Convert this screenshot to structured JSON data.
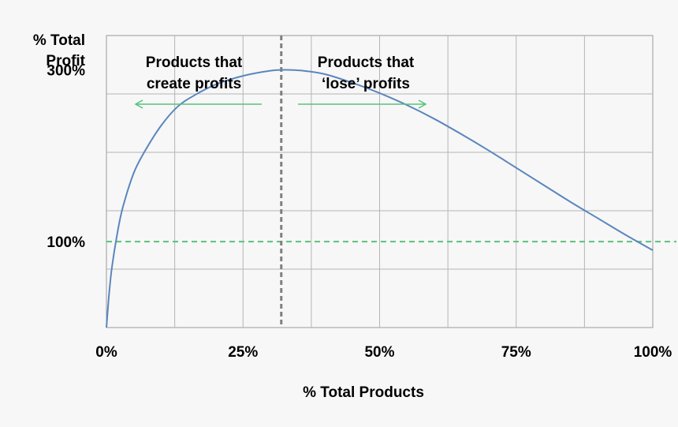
{
  "chart_data": {
    "type": "line",
    "ylabel_line1": "% Total",
    "ylabel_line2": "Profit",
    "xlabel": "% Total Products",
    "x_ticks": [
      "0%",
      "25%",
      "50%",
      "75%",
      "100%"
    ],
    "x_tick_values": [
      0,
      25,
      50,
      75,
      100
    ],
    "y_ticks": [
      "100%",
      "300%"
    ],
    "y_tick_values": [
      100,
      300
    ],
    "xlim": [
      0,
      100
    ],
    "ylim": [
      0,
      340
    ],
    "grid": true,
    "series": [
      {
        "color": "#5b86bd",
        "x": [
          0,
          0.5,
          1,
          2,
          3,
          5,
          7,
          10,
          13,
          16,
          20,
          25,
          30,
          33,
          36,
          40,
          45,
          50,
          55,
          60,
          65,
          70,
          75,
          80,
          85,
          90,
          95,
          100
        ],
        "y": [
          0,
          40,
          70,
          110,
          140,
          180,
          205,
          235,
          257,
          270,
          283,
          293,
          299,
          300,
          299,
          295,
          285,
          273,
          259,
          243,
          225,
          206,
          186,
          166,
          146,
          127,
          108,
          90
        ]
      }
    ],
    "reference_lines": [
      {
        "orientation": "horizontal",
        "value": 100,
        "color": "#59c27c",
        "style": "dashed"
      },
      {
        "orientation": "vertical",
        "value": 32,
        "color": "#7f7f7f",
        "style": "dashed"
      }
    ],
    "annotations": [
      {
        "line1": "Products that",
        "line2": "create profits",
        "arrow": "left",
        "color": "#59c27c"
      },
      {
        "line1": "Products that",
        "line2": "‘lose’ profits",
        "arrow": "right",
        "color": "#59c27c"
      }
    ]
  }
}
